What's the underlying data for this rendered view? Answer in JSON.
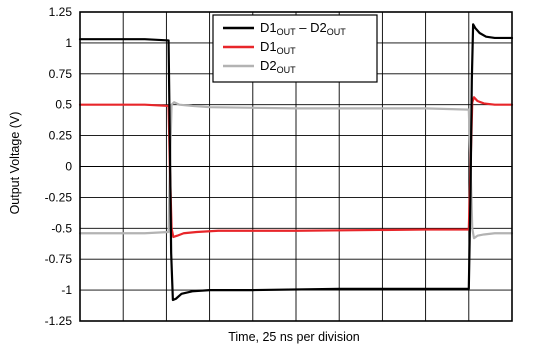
{
  "chart_data": {
    "type": "line",
    "title": "",
    "xlabel": "Time, 25 ns per division",
    "ylabel": "Output Voltage (V)",
    "xlim": [
      0,
      10
    ],
    "ylim": [
      -1.25,
      1.25
    ],
    "x_divisions": 10,
    "y_ticks": [
      1.25,
      1,
      0.75,
      0.5,
      0.25,
      0,
      -0.25,
      -0.5,
      -0.75,
      -1,
      -1.25
    ],
    "y_tick_labels": [
      "1.25",
      "1",
      "0.75",
      "0.5",
      "0.25",
      "0",
      "-0.25",
      "-0.5",
      "-0.75",
      "-1",
      "-1.25"
    ],
    "grid": true,
    "legend_position": "top-right",
    "series": [
      {
        "name_main": "D1",
        "name_sub1": "OUT",
        "name_mid": " – D2",
        "name_sub2": "OUT",
        "color": "#000000",
        "x": [
          0,
          1.5,
          2.05,
          2.08,
          2.11,
          2.15,
          2.22,
          2.35,
          2.6,
          3.0,
          4.0,
          6.0,
          8.0,
          9.0,
          9.04,
          9.07,
          9.1,
          9.15,
          9.25,
          9.4,
          9.6,
          9.9,
          10
        ],
        "y": [
          1.03,
          1.03,
          1.02,
          0.2,
          -0.7,
          -1.08,
          -1.07,
          -1.03,
          -1.01,
          -1.0,
          -1.0,
          -0.99,
          -0.99,
          -0.99,
          -0.2,
          0.7,
          1.15,
          1.12,
          1.08,
          1.05,
          1.04,
          1.04,
          1.04
        ]
      },
      {
        "name_main": "D1",
        "name_sub1": "OUT",
        "color": "#e8262a",
        "x": [
          0,
          1.5,
          2.05,
          2.08,
          2.12,
          2.16,
          2.25,
          2.4,
          2.7,
          3.2,
          5.0,
          8.0,
          9.0,
          9.04,
          9.08,
          9.12,
          9.2,
          9.35,
          9.6,
          10
        ],
        "y": [
          0.5,
          0.5,
          0.49,
          0.0,
          -0.5,
          -0.57,
          -0.56,
          -0.54,
          -0.53,
          -0.52,
          -0.52,
          -0.51,
          -0.51,
          0.0,
          0.52,
          0.56,
          0.53,
          0.51,
          0.5,
          0.5
        ]
      },
      {
        "name_main": "D2",
        "name_sub1": "OUT",
        "color": "#b3b3b3",
        "x": [
          0,
          1.5,
          2.05,
          2.08,
          2.12,
          2.18,
          2.3,
          2.6,
          3.0,
          5.0,
          8.0,
          9.0,
          9.04,
          9.08,
          9.12,
          9.2,
          9.35,
          9.6,
          10
        ],
        "y": [
          -0.54,
          -0.54,
          -0.53,
          0.0,
          0.5,
          0.52,
          0.5,
          0.49,
          0.48,
          0.47,
          0.47,
          0.46,
          0.0,
          -0.5,
          -0.58,
          -0.56,
          -0.55,
          -0.54,
          -0.54
        ]
      }
    ]
  }
}
